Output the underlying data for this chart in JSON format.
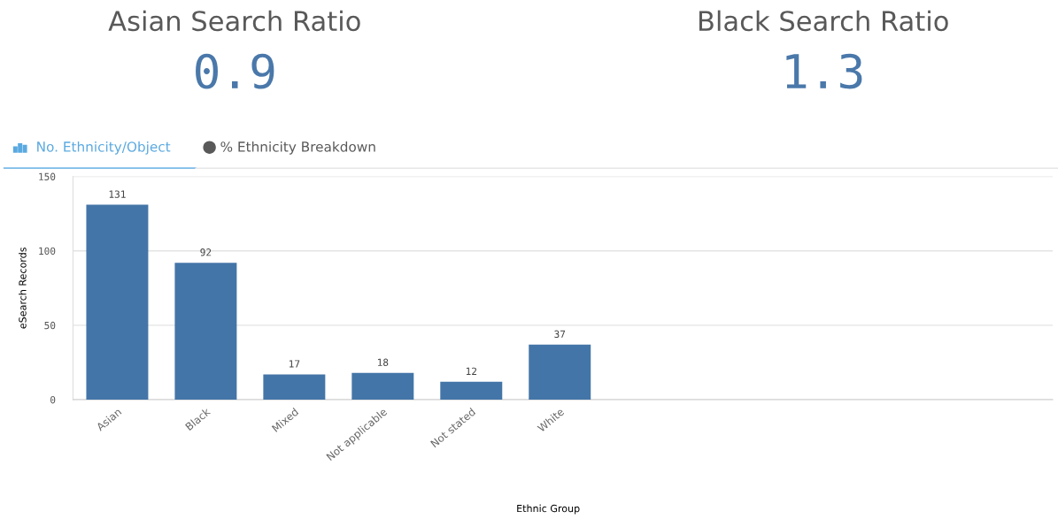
{
  "chart_data": [
    {
      "type": "other",
      "title": "Asian Search Ratio",
      "values": [
        0.9
      ],
      "data_labels": true,
      "color": "#4a78aa"
    },
    {
      "type": "other",
      "title": "Black Search Ratio",
      "values": [
        1.3
      ],
      "data_labels": true,
      "color": "#4a78aa"
    },
    {
      "type": "bar",
      "annotations": [
        "No. Ethnicity/Object",
        "% Ethnicity Breakdown"
      ],
      "xlabel": "Ethnic Group",
      "ylabel": "eSearch Records",
      "categories": [
        "Asian",
        "Black",
        "Mixed",
        "Not applicable",
        "Not stated",
        "White"
      ],
      "values": [
        131,
        92,
        17,
        18,
        12,
        37
      ],
      "color": "#4475a8",
      "data_labels": true,
      "ylim": [
        0,
        150
      ],
      "yticks": [
        0,
        50,
        100,
        150
      ],
      "grid": "y",
      "legend": false
    }
  ]
}
